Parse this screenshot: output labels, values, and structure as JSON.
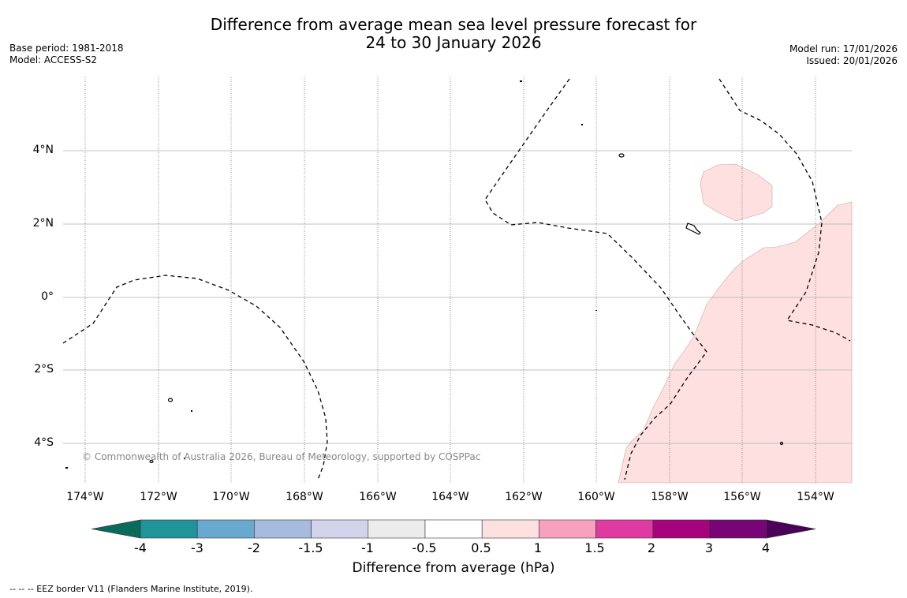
{
  "title_line1": "Difference from average mean sea level pressure forecast for",
  "title_line2": "24 to 30 January 2026",
  "base_period": "Base period: 1981-2018",
  "model": "Model: ACCESS-S2",
  "model_run": "Model run: 17/01/2026",
  "issued": "Issued: 20/01/2026",
  "map": {
    "lat_labels": [
      "4°N",
      "2°N",
      "0°",
      "2°S",
      "4°S"
    ],
    "lon_labels": [
      "174°W",
      "172°W",
      "170°W",
      "168°W",
      "166°W",
      "164°W",
      "162°W",
      "160°W",
      "158°W",
      "156°W",
      "154°W"
    ],
    "copyright": "© Commonwealth of Australia 2026, Bureau of Meteorology, supported by COSPPac",
    "land_color": "#000000",
    "eez_line_color": "#000000"
  },
  "colorbar": {
    "title": "Difference from average (hPa)",
    "tick_labels": [
      "-4",
      "-3",
      "-2",
      "-1.5",
      "-1",
      "-0.5",
      "0.5",
      "1",
      "1.5",
      "2",
      "3",
      "4"
    ],
    "colors": [
      "#0b6b5a",
      "#1f9499",
      "#69a8cf",
      "#a7bbde",
      "#d2d3ea",
      "#ececec",
      "#ffffff",
      "#fde0df",
      "#f7a1bf",
      "#de3aa0",
      "#a8037e",
      "#770575",
      "#4b0059"
    ]
  },
  "footnote": "--  --  -- EEZ border V11 (Flanders Marine Institute, 2019)."
}
